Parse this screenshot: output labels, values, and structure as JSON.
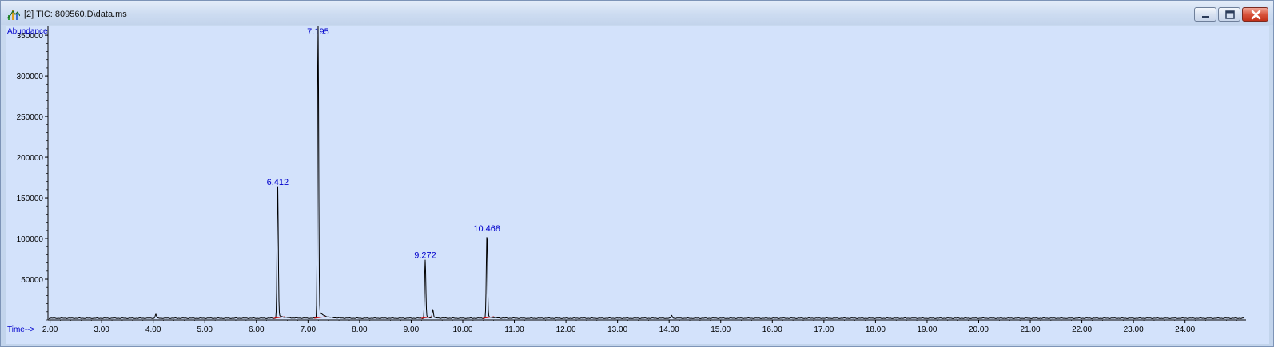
{
  "window": {
    "title": "[2] TIC: 809560.D\\data.ms",
    "icon": "chromatogram-app-icon",
    "controls": [
      "minimize",
      "maximize",
      "close"
    ]
  },
  "colors": {
    "plot_background": "#d3e2fb",
    "trace": "#000000",
    "peak_label": "#0000cc",
    "axis_label": "#0000cc",
    "baseline_marks": "#cc0000"
  },
  "chart_data": {
    "type": "line",
    "title": "",
    "ylabel": "Abundance",
    "xlabel": "Time-->",
    "xlim": [
      1.96,
      25.12
    ],
    "ylim": [
      0,
      357000
    ],
    "y_ticks": [
      50000,
      100000,
      150000,
      200000,
      250000,
      300000,
      350000
    ],
    "x_ticks": [
      "2.00",
      "3.00",
      "4.00",
      "5.00",
      "6.00",
      "7.00",
      "8.00",
      "9.00",
      "10.00",
      "11.00",
      "12.00",
      "13.00",
      "14.00",
      "15.00",
      "16.00",
      "17.00",
      "18.00",
      "19.00",
      "20.00",
      "21.00",
      "22.00",
      "23.00",
      "24.00"
    ],
    "grid": false,
    "baseline": 2000,
    "peaks": [
      {
        "rt": 4.05,
        "height": 5000
      },
      {
        "rt": 6.412,
        "height": 160000
      },
      {
        "rt": 7.195,
        "height": 360000
      },
      {
        "rt": 9.272,
        "height": 70000
      },
      {
        "rt": 9.42,
        "height": 10000
      },
      {
        "rt": 10.468,
        "height": 103000
      },
      {
        "rt": 14.05,
        "height": 3500
      }
    ],
    "peak_labels": [
      {
        "rt": 6.412,
        "label": "6.412",
        "height": 160000
      },
      {
        "rt": 7.195,
        "label": "7.195",
        "height": 360000
      },
      {
        "rt": 9.272,
        "label": "9.272",
        "height": 70000
      },
      {
        "rt": 10.468,
        "label": "10.468",
        "height": 103000
      }
    ]
  }
}
